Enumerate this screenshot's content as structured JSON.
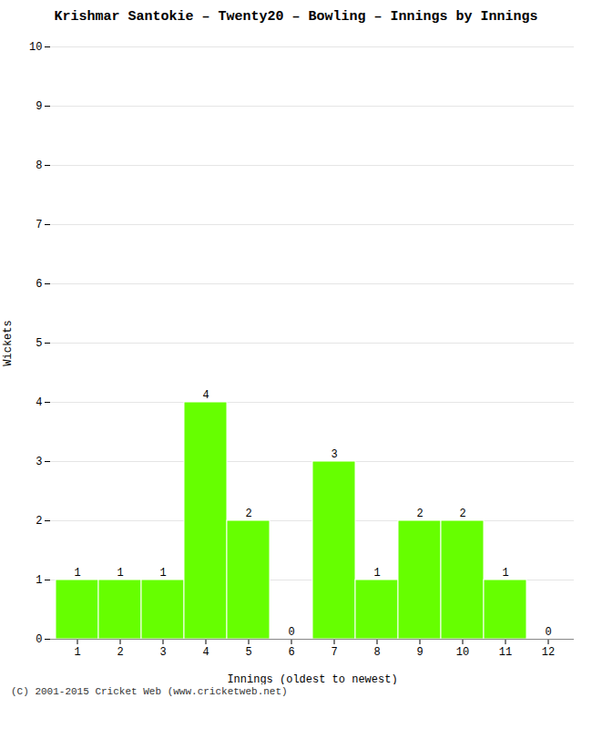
{
  "chart_data": {
    "type": "bar",
    "title": "Krishmar Santokie – Twenty20 – Bowling – Innings by Innings",
    "caption": "(C) 2001-2015 Cricket Web (www.cricketweb.net)",
    "xlabel": "Innings (oldest to newest)",
    "ylabel": "Wickets",
    "categories": [
      "1",
      "2",
      "3",
      "4",
      "5",
      "6",
      "7",
      "8",
      "9",
      "10",
      "11",
      "12"
    ],
    "values": [
      1,
      1,
      1,
      4,
      2,
      0,
      3,
      1,
      2,
      2,
      1,
      0
    ],
    "color": "#66ff00",
    "ylim": [
      0,
      10
    ],
    "yticks": [
      0,
      1,
      2,
      3,
      4,
      5,
      6,
      7,
      8,
      9,
      10
    ],
    "grid": true,
    "data_labels": true
  }
}
